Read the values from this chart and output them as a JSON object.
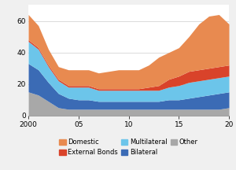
{
  "years": [
    2000,
    2001,
    2002,
    2003,
    2004,
    2005,
    2006,
    2007,
    2008,
    2009,
    2010,
    2011,
    2012,
    2013,
    2014,
    2015,
    2016,
    2017,
    2018,
    2019,
    2020
  ],
  "other": [
    15,
    13,
    9,
    5,
    4,
    4,
    4,
    4,
    4,
    4,
    4,
    4,
    4,
    4,
    4,
    4,
    4,
    4,
    4,
    4,
    5
  ],
  "bilateral": [
    18,
    16,
    12,
    9,
    7,
    6,
    6,
    5,
    5,
    5,
    5,
    5,
    5,
    5,
    6,
    6,
    7,
    8,
    9,
    10,
    10
  ],
  "multilateral": [
    14,
    13,
    10,
    8,
    7,
    8,
    8,
    7,
    7,
    7,
    7,
    7,
    7,
    7,
    8,
    9,
    10,
    10,
    10,
    10,
    10
  ],
  "ext_bonds": [
    1,
    1,
    1,
    1,
    1,
    1,
    1,
    1,
    1,
    1,
    1,
    1,
    2,
    3,
    5,
    6,
    7,
    7,
    7,
    7,
    7
  ],
  "domestic": [
    16,
    14,
    10,
    8,
    10,
    10,
    10,
    10,
    11,
    12,
    12,
    12,
    14,
    18,
    17,
    18,
    22,
    29,
    33,
    33,
    26
  ],
  "colors": {
    "other": "#a8a8a8",
    "bilateral": "#3b6bb5",
    "multilateral": "#6cc5ea",
    "ext_bonds": "#d9432a",
    "domestic": "#e88a50"
  },
  "labels": {
    "domestic": "Domestic",
    "ext_bonds": "External Bonds",
    "multilateral": "Multilateral",
    "bilateral": "Bilateral",
    "other": "Other"
  },
  "ylim": [
    0,
    70
  ],
  "yticks": [
    0,
    20,
    40,
    60
  ],
  "xticks": [
    2000,
    2005,
    2010,
    2015,
    2020
  ],
  "xticklabels": [
    "2000",
    "05",
    "10",
    "15",
    "20"
  ],
  "background_color": "#f0f0f0",
  "legend_fontsize": 6,
  "axis_fontsize": 6.5
}
